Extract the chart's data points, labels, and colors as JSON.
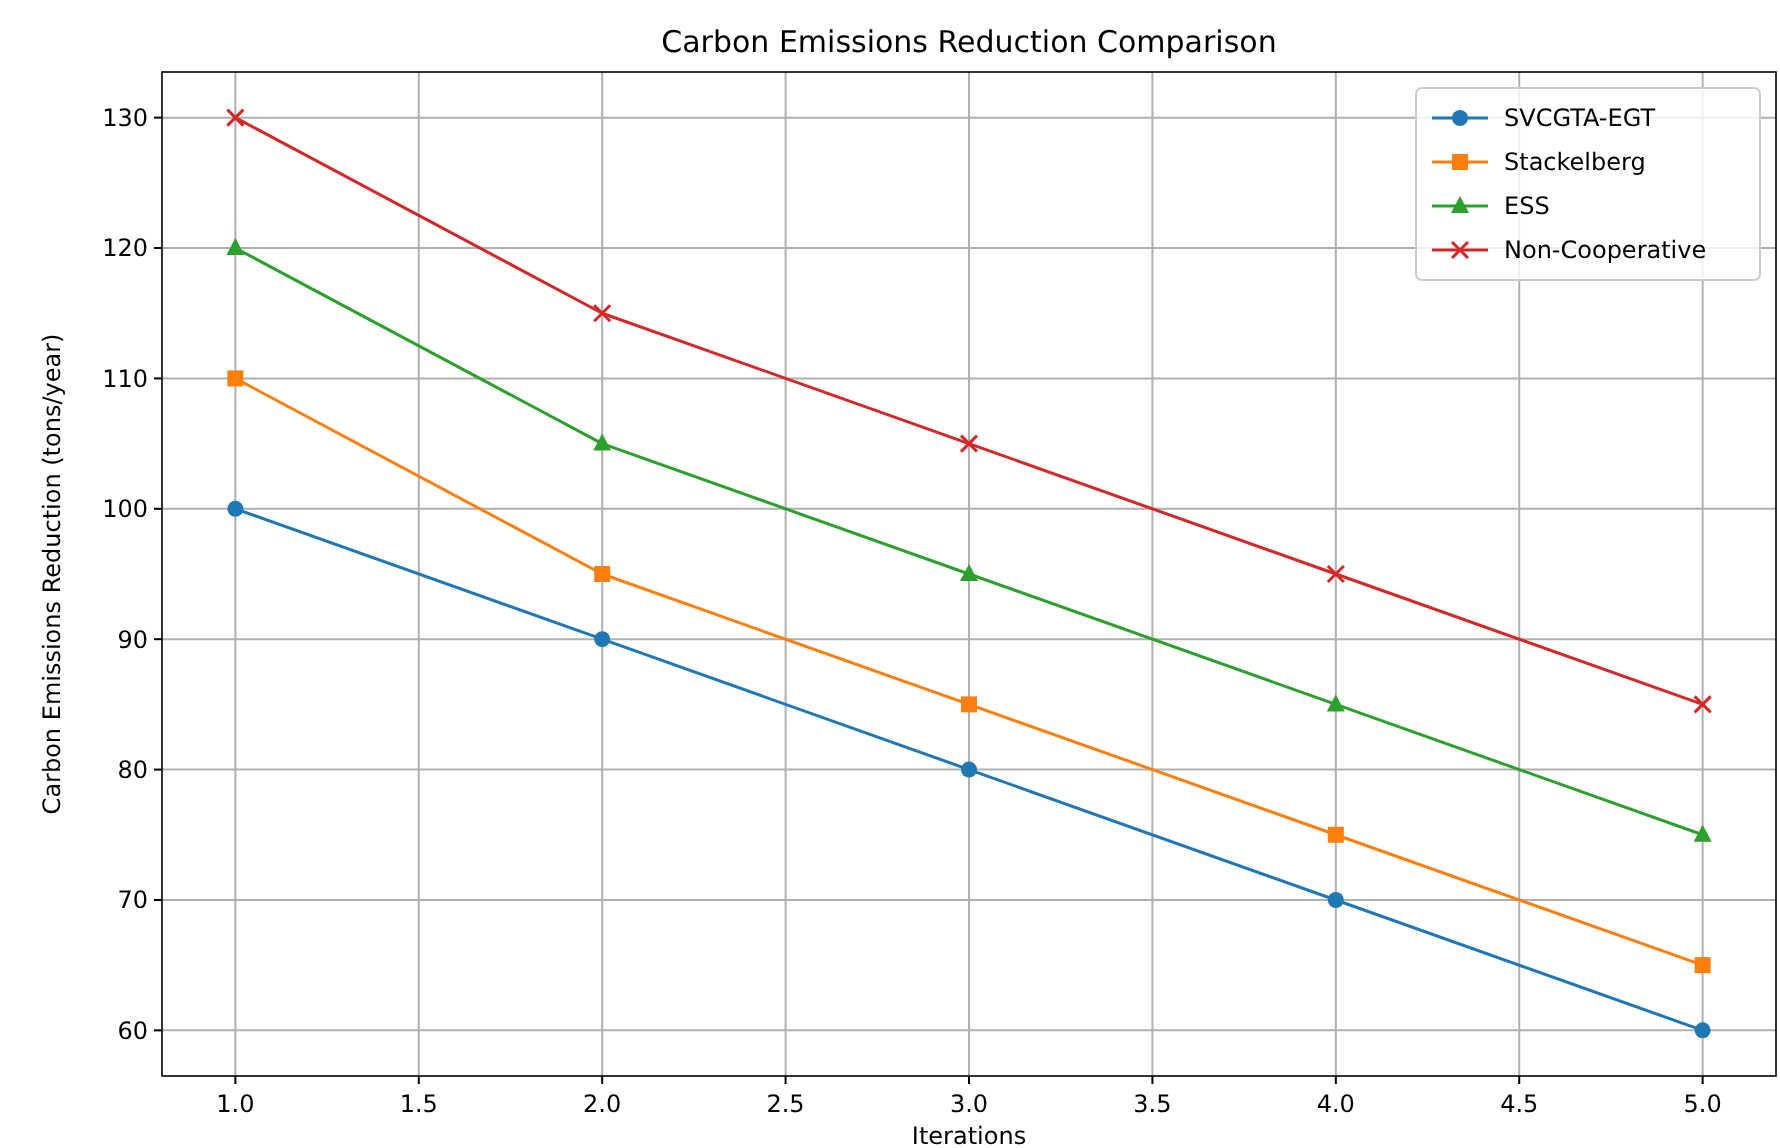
{
  "chart_data": {
    "type": "line",
    "title": "Carbon Emissions Reduction Comparison",
    "xlabel": "Iterations",
    "ylabel": "Carbon Emissions Reduction (tons/year)",
    "x": [
      1,
      2,
      3,
      4,
      5
    ],
    "series": [
      {
        "name": "SVCGTA-EGT",
        "color": "#1f77b4",
        "marker": "circle",
        "values": [
          100,
          90,
          80,
          70,
          60
        ]
      },
      {
        "name": "Stackelberg",
        "color": "#ff7f0e",
        "marker": "square",
        "values": [
          110,
          95,
          85,
          75,
          65
        ]
      },
      {
        "name": "ESS",
        "color": "#2ca02c",
        "marker": "triangle",
        "values": [
          120,
          105,
          95,
          85,
          75
        ]
      },
      {
        "name": "Non-Cooperative",
        "color": "#d62728",
        "marker": "cross",
        "values": [
          130,
          115,
          105,
          95,
          85
        ]
      }
    ],
    "xlim": [
      0.8,
      5.2
    ],
    "xticks": [
      {
        "value": 1,
        "label": "1.0"
      },
      {
        "value": 1.5,
        "label": "1.5"
      },
      {
        "value": 2,
        "label": "2.0"
      },
      {
        "value": 2.5,
        "label": "2.5"
      },
      {
        "value": 3,
        "label": "3.0"
      },
      {
        "value": 3.5,
        "label": "3.5"
      },
      {
        "value": 4,
        "label": "4.0"
      },
      {
        "value": 4.5,
        "label": "4.5"
      },
      {
        "value": 5,
        "label": "5.0"
      }
    ],
    "ylim": [
      56.5,
      133.5
    ],
    "yticks": [
      60,
      70,
      80,
      90,
      100,
      110,
      120,
      130
    ],
    "grid": true,
    "legend": "top right",
    "line_style": "solid"
  }
}
